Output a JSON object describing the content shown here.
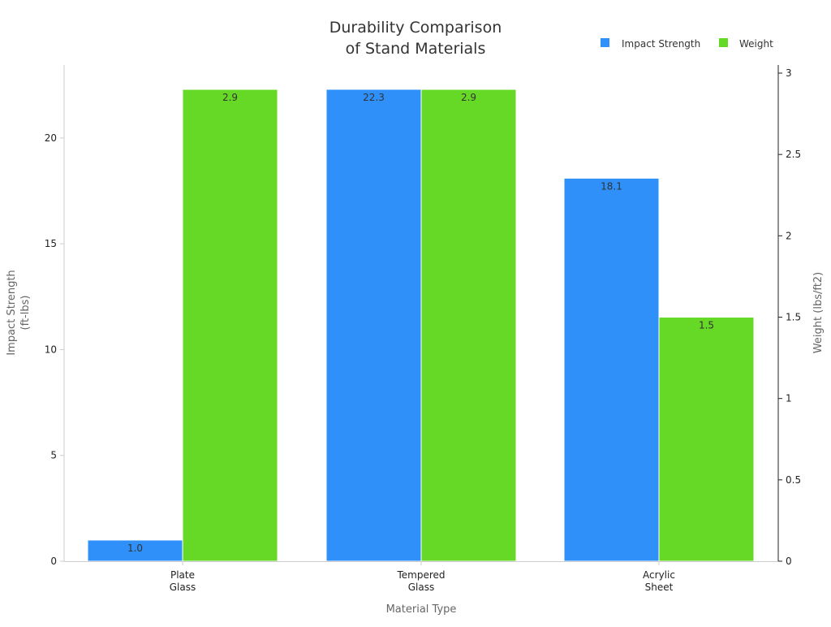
{
  "chart_data": {
    "type": "bar",
    "title": [
      "Durability Comparison",
      "of Stand Materials"
    ],
    "xlabel": "Material Type",
    "ylabel_left": [
      "Impact Strength",
      "(ft-lbs)"
    ],
    "ylabel_right": "Weight (lbs/ft2)",
    "categories": [
      [
        "Plate",
        "Glass"
      ],
      [
        "Tempered",
        "Glass"
      ],
      [
        "Acrylic",
        "Sheet"
      ]
    ],
    "series": [
      {
        "name": "Impact Strength",
        "axis": "left",
        "color": "#2e90f8",
        "values": [
          1.0,
          22.3,
          18.1
        ],
        "labels": [
          "1.0",
          "22.3",
          "18.1"
        ]
      },
      {
        "name": "Weight",
        "axis": "right",
        "color": "#66d926",
        "values": [
          2.9,
          2.9,
          1.5
        ],
        "labels": [
          "2.9",
          "2.9",
          "1.5"
        ]
      }
    ],
    "ylim_left": [
      0,
      23.45
    ],
    "ylim_right": [
      0,
      3.05
    ],
    "yticks_left": [
      "0",
      "5",
      "10",
      "15",
      "20"
    ],
    "yticks_right": [
      "0",
      "0.5",
      "1",
      "1.5",
      "2",
      "2.5",
      "3"
    ],
    "grid": false,
    "legend_placement": "top-right"
  }
}
